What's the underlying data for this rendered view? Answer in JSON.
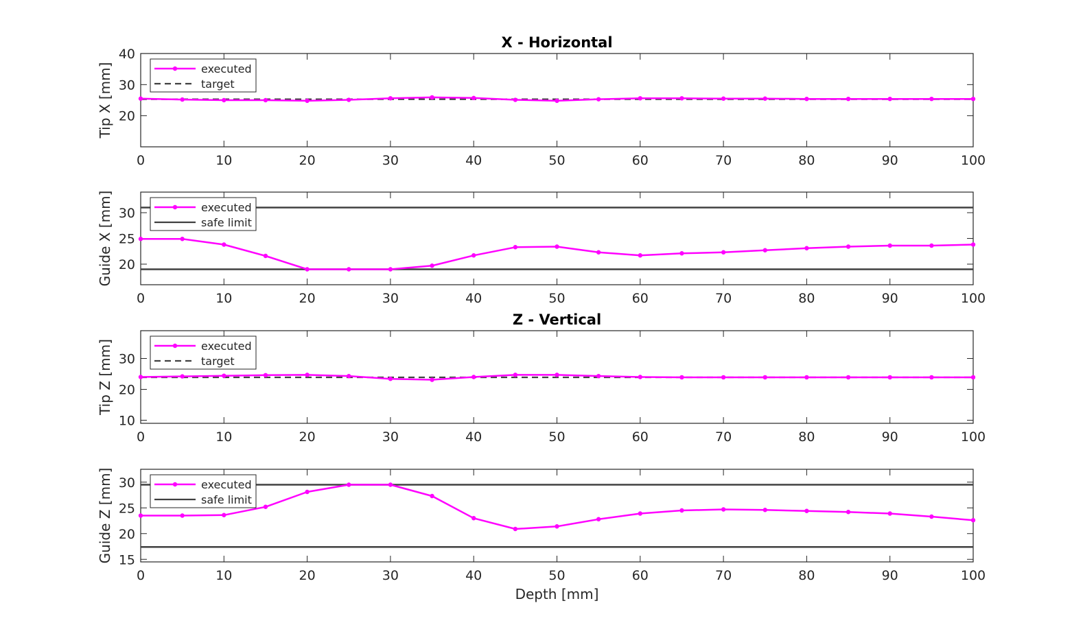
{
  "colors": {
    "executed": "#ff00ff",
    "target": "#404040",
    "limit": "#404040",
    "axis": "#262626"
  },
  "chart_data": [
    {
      "type": "line",
      "title": "X - Horizontal",
      "xlabel": "",
      "ylabel": "Tip X [mm]",
      "xlim": [
        0,
        100
      ],
      "ylim": [
        10,
        40
      ],
      "xticks": [
        0,
        10,
        20,
        30,
        40,
        50,
        60,
        70,
        80,
        90,
        100
      ],
      "yticks": [
        20,
        30,
        40
      ],
      "legend": {
        "position": "top-left",
        "entries": [
          "executed",
          "target"
        ]
      },
      "series": [
        {
          "name": "executed",
          "style": "marker-line",
          "x": [
            0,
            5,
            10,
            15,
            20,
            25,
            30,
            35,
            40,
            45,
            50,
            55,
            60,
            65,
            70,
            75,
            80,
            85,
            90,
            95,
            100
          ],
          "y": [
            25.5,
            25.2,
            25.0,
            25.0,
            24.8,
            25.1,
            25.6,
            25.9,
            25.7,
            25.1,
            24.8,
            25.3,
            25.6,
            25.6,
            25.5,
            25.5,
            25.4,
            25.4,
            25.4,
            25.4,
            25.4
          ]
        },
        {
          "name": "target",
          "style": "dashed",
          "x": [
            0,
            100
          ],
          "y": [
            25.3,
            25.3
          ]
        }
      ]
    },
    {
      "type": "line",
      "title": "",
      "xlabel": "",
      "ylabel": "Guide X [mm]",
      "xlim": [
        0,
        100
      ],
      "ylim": [
        16,
        34
      ],
      "xticks": [
        0,
        10,
        20,
        30,
        40,
        50,
        60,
        70,
        80,
        90,
        100
      ],
      "yticks": [
        20,
        25,
        30
      ],
      "legend": {
        "position": "top-left",
        "entries": [
          "executed",
          "safe limit"
        ]
      },
      "series": [
        {
          "name": "executed",
          "style": "marker-line",
          "x": [
            0,
            5,
            10,
            15,
            20,
            25,
            30,
            35,
            40,
            45,
            50,
            55,
            60,
            65,
            70,
            75,
            80,
            85,
            90,
            95,
            100
          ],
          "y": [
            24.9,
            24.9,
            23.8,
            21.6,
            19.0,
            19.0,
            19.0,
            19.7,
            21.7,
            23.3,
            23.4,
            22.3,
            21.7,
            22.1,
            22.3,
            22.7,
            23.1,
            23.4,
            23.6,
            23.6,
            23.8
          ]
        },
        {
          "name": "safe limit",
          "style": "solid",
          "x": [
            0,
            100
          ],
          "y": [
            31.0,
            31.0
          ]
        },
        {
          "name": "safe limit",
          "style": "solid",
          "x": [
            0,
            100
          ],
          "y": [
            19.0,
            19.0
          ]
        }
      ]
    },
    {
      "type": "line",
      "title": "Z - Vertical",
      "xlabel": "",
      "ylabel": "Tip Z [mm]",
      "xlim": [
        0,
        100
      ],
      "ylim": [
        9,
        39
      ],
      "xticks": [
        0,
        10,
        20,
        30,
        40,
        50,
        60,
        70,
        80,
        90,
        100
      ],
      "yticks": [
        10,
        20,
        30
      ],
      "legend": {
        "position": "top-left",
        "entries": [
          "executed",
          "target"
        ]
      },
      "series": [
        {
          "name": "executed",
          "style": "marker-line",
          "x": [
            0,
            5,
            10,
            15,
            20,
            25,
            30,
            35,
            40,
            45,
            50,
            55,
            60,
            65,
            70,
            75,
            80,
            85,
            90,
            95,
            100
          ],
          "y": [
            24.0,
            24.2,
            24.4,
            24.6,
            24.7,
            24.3,
            23.4,
            23.1,
            24.0,
            24.7,
            24.7,
            24.3,
            24.0,
            23.9,
            23.9,
            23.9,
            23.9,
            23.9,
            23.9,
            23.9,
            23.9
          ]
        },
        {
          "name": "target",
          "style": "dashed",
          "x": [
            0,
            100
          ],
          "y": [
            23.9,
            23.9
          ]
        }
      ]
    },
    {
      "type": "line",
      "title": "",
      "xlabel": "Depth [mm]",
      "ylabel": "Guide Z [mm]",
      "xlim": [
        0,
        100
      ],
      "ylim": [
        14.5,
        32.5
      ],
      "xticks": [
        0,
        10,
        20,
        30,
        40,
        50,
        60,
        70,
        80,
        90,
        100
      ],
      "yticks": [
        15,
        20,
        25,
        30
      ],
      "legend": {
        "position": "top-left",
        "entries": [
          "executed",
          "safe limit"
        ]
      },
      "series": [
        {
          "name": "executed",
          "style": "marker-line",
          "x": [
            0,
            5,
            10,
            15,
            20,
            25,
            30,
            35,
            40,
            45,
            50,
            55,
            60,
            65,
            70,
            75,
            80,
            85,
            90,
            95,
            100
          ],
          "y": [
            23.5,
            23.5,
            23.6,
            25.2,
            28.1,
            29.5,
            29.5,
            27.3,
            23.0,
            20.9,
            21.4,
            22.8,
            23.9,
            24.5,
            24.7,
            24.6,
            24.4,
            24.2,
            23.9,
            23.3,
            22.6
          ]
        },
        {
          "name": "safe limit",
          "style": "solid",
          "x": [
            0,
            100
          ],
          "y": [
            29.5,
            29.5
          ]
        },
        {
          "name": "safe limit",
          "style": "solid",
          "x": [
            0,
            100
          ],
          "y": [
            17.4,
            17.4
          ]
        }
      ]
    }
  ]
}
